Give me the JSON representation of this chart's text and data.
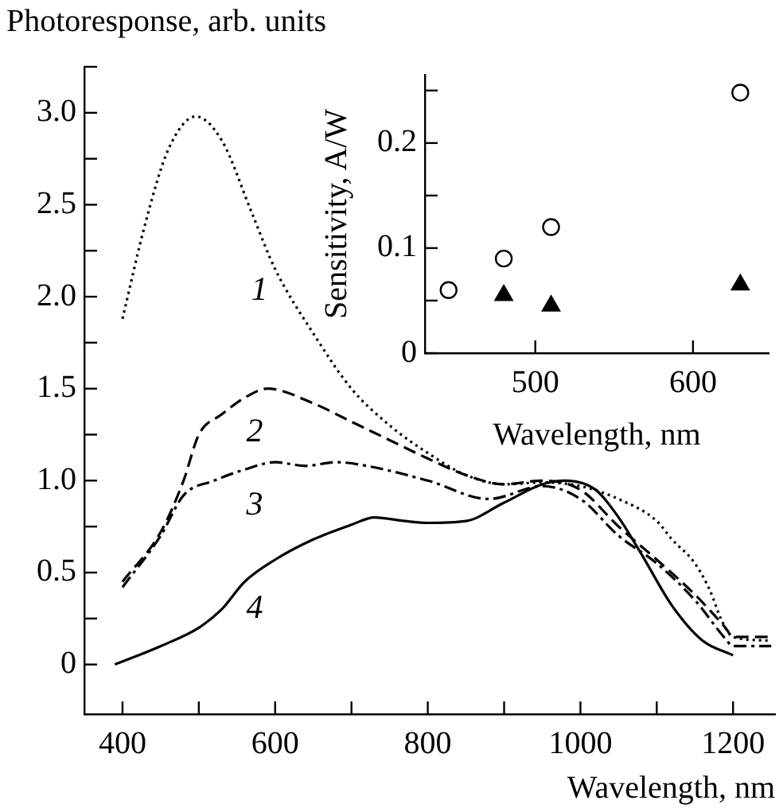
{
  "chart_data": [
    {
      "type": "line",
      "ylabel": "Photoresponse, arb. units",
      "xlabel": "Wavelength, nm",
      "xlim": [
        350,
        1255
      ],
      "ylim": [
        -0.27,
        3.25
      ],
      "xticks": [
        400,
        {
          "value": 500,
          "label": null
        },
        600,
        {
          "value": 700,
          "label": null
        },
        800,
        {
          "value": 900,
          "label": null
        },
        1000,
        {
          "value": 1100,
          "label": null
        },
        1200
      ],
      "yticks": [
        0,
        {
          "value": 0.25,
          "label": null
        },
        0.5,
        {
          "value": 0.75,
          "label": null
        },
        {
          "value": 1,
          "label": "1.0"
        },
        {
          "value": 1.25,
          "label": null
        },
        1.5,
        {
          "value": 1.75,
          "label": null
        },
        {
          "value": 2,
          "label": "2.0"
        },
        {
          "value": 2.25,
          "label": null
        },
        2.5,
        {
          "value": 2.75,
          "label": null
        },
        {
          "value": 3,
          "label": "3.0"
        },
        {
          "value": 3.25,
          "label": null
        }
      ],
      "marker": "none",
      "series": [
        {
          "name": "1",
          "color": "#000000",
          "line_style": "dotted",
          "x": [
            400,
            430,
            460,
            496,
            530,
            570,
            600,
            650,
            700,
            750,
            800,
            850,
            900,
            950,
            1000,
            1050,
            1100,
            1120,
            1150,
            1170,
            1185,
            1200,
            1250
          ],
          "values": [
            1.88,
            2.4,
            2.8,
            2.98,
            2.85,
            2.45,
            2.15,
            1.8,
            1.5,
            1.3,
            1.15,
            1.03,
            0.98,
            0.99,
            0.97,
            0.9,
            0.78,
            0.68,
            0.55,
            0.4,
            0.24,
            0.15,
            0.13
          ]
        },
        {
          "name": "2",
          "color": "#000000",
          "line_style": "dashed",
          "x": [
            400,
            450,
            480,
            500,
            530,
            560,
            590,
            650,
            700,
            750,
            800,
            850,
            900,
            950,
            1000,
            1050,
            1100,
            1150,
            1190,
            1200,
            1250
          ],
          "values": [
            0.45,
            0.72,
            1.0,
            1.25,
            1.36,
            1.45,
            1.5,
            1.42,
            1.32,
            1.22,
            1.12,
            1.03,
            0.98,
            1.0,
            0.95,
            0.75,
            0.57,
            0.38,
            0.2,
            0.15,
            0.15
          ]
        },
        {
          "name": "3",
          "color": "#000000",
          "line_style": "dashdot",
          "x": [
            400,
            450,
            480,
            520,
            560,
            600,
            640,
            680,
            720,
            800,
            880,
            950,
            1000,
            1050,
            1100,
            1150,
            1190,
            1200,
            1250
          ],
          "values": [
            0.42,
            0.7,
            0.92,
            1.0,
            1.06,
            1.1,
            1.08,
            1.1,
            1.08,
            1.0,
            0.9,
            0.97,
            0.9,
            0.7,
            0.55,
            0.35,
            0.14,
            0.1,
            0.1
          ]
        },
        {
          "name": "4",
          "color": "#000000",
          "line_style": "solid",
          "x": [
            390,
            450,
            500,
            530,
            560,
            600,
            650,
            700,
            730,
            770,
            800,
            850,
            900,
            950,
            980,
            1020,
            1050,
            1080,
            1120,
            1160,
            1200
          ],
          "values": [
            0,
            0.1,
            0.2,
            0.3,
            0.45,
            0.57,
            0.68,
            0.76,
            0.8,
            0.78,
            0.77,
            0.78,
            0.88,
            0.98,
            1.0,
            0.95,
            0.8,
            0.6,
            0.32,
            0.13,
            0.05
          ]
        }
      ]
    },
    {
      "type": "scatter",
      "ylabel": "Sensitivity, A/W",
      "xlabel": "Wavelength, nm",
      "xlim": [
        430,
        648
      ],
      "ylim": [
        0,
        0.265
      ],
      "xticks": [
        500,
        600
      ],
      "yticks": [
        0,
        {
          "value": 0.05,
          "label": null
        },
        0.1,
        {
          "value": 0.15,
          "label": null
        },
        0.2,
        {
          "value": 0.25,
          "label": null
        }
      ],
      "series": [
        {
          "color": "#000000",
          "marker": "circle",
          "x": [
            445,
            480,
            510,
            630
          ],
          "values": [
            0.06,
            0.09,
            0.12,
            0.248
          ]
        },
        {
          "color": "#000000",
          "marker": "triangle",
          "x": [
            480,
            510,
            630
          ],
          "values": [
            0.055,
            0.045,
            0.065
          ]
        }
      ]
    }
  ]
}
